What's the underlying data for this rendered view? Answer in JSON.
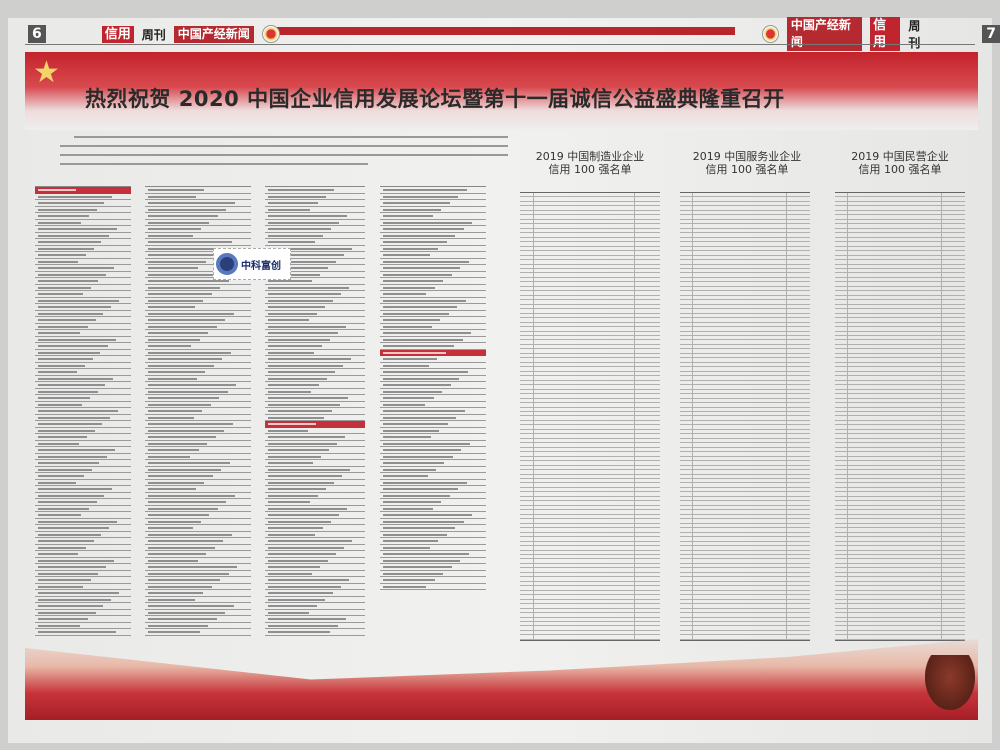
{
  "header": {
    "left": {
      "page_number": "6",
      "tag": "信用",
      "weekly": "周刊",
      "paper_name": "中国产经新闻"
    },
    "right": {
      "page_number": "7",
      "tag": "信用",
      "weekly": "周刊",
      "paper_name": "中国产经新闻"
    }
  },
  "headline": "热烈祝贺 2020 中国企业信用发展论坛暨第十一届诚信公益盛典隆重召开",
  "rankings": [
    {
      "title_line1": "2019 中国制造业企业",
      "title_line2": "信用 100 强名单"
    },
    {
      "title_line1": "2019 中国服务业企业",
      "title_line2": "信用 100 强名单"
    },
    {
      "title_line1": "2019 中国民营企业",
      "title_line2": "信用 100 强名单"
    }
  ],
  "watermark": {
    "brand": "中科富创"
  },
  "colors": {
    "accent_red": "#c0242e",
    "paper": "#eeeeec",
    "text": "#2a2a2a"
  }
}
